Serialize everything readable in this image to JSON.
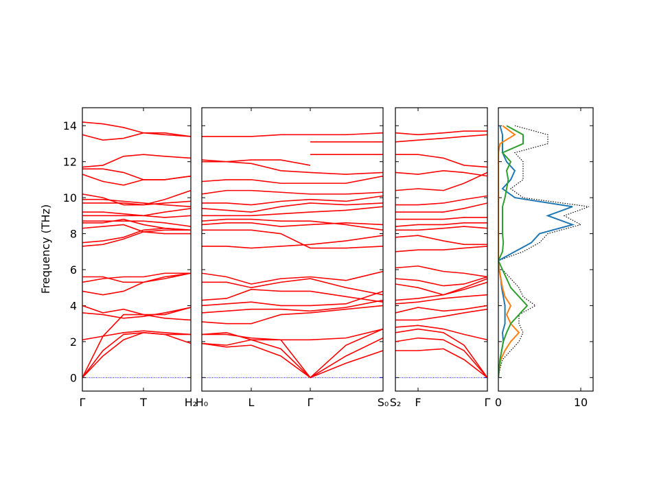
{
  "chart_data": [
    {
      "type": "band",
      "ylabel": "Frequency (THz)",
      "ylim": [
        -0.75,
        15
      ],
      "yticks": [
        0,
        2,
        4,
        6,
        8,
        10,
        12,
        14
      ],
      "ytick_labels": true,
      "xlim": [
        0,
        1.58
      ],
      "xticks": [
        {
          "value": 0,
          "label": "Γ"
        },
        {
          "value": 0.89,
          "label": "T"
        },
        {
          "value": 1.58,
          "label": "H₂"
        }
      ],
      "color": "#ff0000",
      "zero_line": true,
      "zero_line_color": "#0000ff",
      "x": [
        0,
        0.3,
        0.6,
        0.89,
        1.2,
        1.58
      ],
      "series": [
        {
          "values": [
            0,
            1.2,
            2.1,
            2.5,
            2.4,
            1.9
          ]
        },
        {
          "values": [
            0,
            1.5,
            2.4,
            2.5,
            2.4,
            2.4
          ]
        },
        {
          "values": [
            0,
            2.3,
            3.5,
            3.5,
            3.3,
            3.2
          ]
        },
        {
          "values": [
            2.1,
            2.3,
            2.5,
            2.6,
            2.5,
            2.4
          ]
        },
        {
          "values": [
            3.6,
            3.5,
            3.3,
            3.4,
            3.6,
            3.9
          ]
        },
        {
          "values": [
            4.0,
            3.6,
            3.8,
            3.5,
            3.5,
            3.9
          ]
        },
        {
          "values": [
            4.8,
            4.6,
            4.8,
            5.3,
            5.6,
            5.8
          ]
        },
        {
          "values": [
            5.3,
            5.5,
            5.6,
            5.6,
            5.8,
            5.8
          ]
        },
        {
          "values": [
            5.6,
            5.6,
            5.3,
            5.3,
            5.5,
            5.8
          ]
        },
        {
          "values": [
            7.3,
            7.4,
            7.7,
            8.1,
            8.2,
            8.2
          ]
        },
        {
          "values": [
            7.5,
            7.6,
            7.8,
            8.2,
            8.3,
            8.2
          ]
        },
        {
          "values": [
            8.3,
            8.4,
            8.5,
            8.1,
            8.0,
            8.0
          ]
        },
        {
          "values": [
            8.6,
            8.6,
            8.8,
            8.5,
            8.3,
            8.2
          ]
        },
        {
          "values": [
            8.7,
            8.7,
            8.7,
            8.7,
            8.6,
            8.4
          ]
        },
        {
          "values": [
            9.0,
            9.0,
            9.0,
            9.0,
            8.9,
            9.0
          ]
        },
        {
          "values": [
            9.2,
            9.2,
            9.1,
            9.0,
            9.2,
            9.4
          ]
        },
        {
          "values": [
            9.7,
            9.7,
            9.7,
            9.6,
            9.7,
            9.8
          ]
        },
        {
          "values": [
            9.9,
            9.9,
            9.8,
            9.7,
            9.6,
            9.5
          ]
        },
        {
          "values": [
            10.2,
            10.0,
            9.6,
            9.6,
            9.9,
            10.4
          ]
        },
        {
          "values": [
            11.3,
            10.9,
            10.7,
            11.0,
            11.0,
            11.2
          ]
        },
        {
          "values": [
            11.6,
            11.6,
            11.4,
            11.0,
            11.0,
            11.2
          ]
        },
        {
          "values": [
            11.7,
            11.8,
            12.3,
            12.4,
            12.3,
            12.2
          ]
        },
        {
          "values": [
            13.5,
            13.2,
            13.3,
            13.6,
            13.5,
            13.4
          ]
        },
        {
          "values": [
            14.2,
            14.1,
            13.9,
            13.6,
            13.6,
            13.4
          ]
        }
      ]
    },
    {
      "type": "band",
      "ylim": [
        -0.75,
        15
      ],
      "yticks": [
        0,
        2,
        4,
        6,
        8,
        10,
        12,
        14
      ],
      "ytick_labels": false,
      "xlim": [
        0,
        2.64
      ],
      "xticks": [
        {
          "value": 0,
          "label": "H₀"
        },
        {
          "value": 0.72,
          "label": "L"
        },
        {
          "value": 1.58,
          "label": "Γ"
        },
        {
          "value": 2.64,
          "label": "S₀"
        }
      ],
      "color": "#ff0000",
      "zero_line": true,
      "zero_line_color": "#0000ff",
      "x": [
        0,
        0.36,
        0.72,
        1.15,
        1.58,
        2.1,
        2.64
      ],
      "series": [
        {
          "values": [
            1.9,
            1.7,
            1.8,
            1.2,
            0,
            0.8,
            1.5
          ]
        },
        {
          "values": [
            1.9,
            1.8,
            2.1,
            1.6,
            0,
            1.2,
            2.2
          ]
        },
        {
          "values": [
            2.4,
            2.4,
            2.2,
            2.1,
            0,
            1.8,
            2.7
          ]
        },
        {
          "values": [
            2.4,
            2.5,
            2.1,
            2.1,
            2.1,
            2.2,
            2.7
          ]
        },
        {
          "values": [
            3.1,
            3.0,
            3.0,
            3.5,
            3.6,
            3.8,
            4.0
          ]
        },
        {
          "values": [
            3.6,
            3.7,
            3.8,
            3.8,
            3.7,
            3.9,
            4.3
          ]
        },
        {
          "values": [
            4.0,
            4.1,
            4.2,
            4.0,
            4.0,
            4.1,
            4.8
          ]
        },
        {
          "values": [
            4.3,
            4.4,
            4.9,
            4.8,
            4.8,
            4.5,
            4.2
          ]
        },
        {
          "values": [
            5.3,
            5.3,
            5.0,
            5.3,
            5.5,
            5.0,
            4.6
          ]
        },
        {
          "values": [
            5.8,
            5.6,
            5.2,
            5.5,
            5.6,
            5.4,
            5.9
          ]
        },
        {
          "values": [
            7.3,
            7.3,
            7.2,
            7.3,
            7.4,
            7.6,
            7.9
          ]
        },
        {
          "values": [
            8.2,
            8.2,
            8.2,
            8.0,
            7.2,
            7.2,
            7.3
          ]
        },
        {
          "values": [
            8.5,
            8.6,
            8.6,
            8.4,
            8.5,
            8.6,
            8.5
          ]
        },
        {
          "values": [
            8.7,
            8.8,
            8.8,
            8.7,
            8.7,
            8.5,
            8.2
          ]
        },
        {
          "values": [
            9.0,
            9.0,
            9.0,
            9.1,
            9.2,
            9.3,
            9.5
          ]
        },
        {
          "values": [
            9.4,
            9.3,
            9.2,
            9.5,
            9.7,
            9.6,
            9.7
          ]
        },
        {
          "values": [
            9.7,
            9.7,
            9.6,
            9.8,
            9.9,
            9.8,
            10.1
          ]
        },
        {
          "values": [
            10.2,
            10.4,
            10.4,
            10.3,
            10.2,
            10.2,
            10.3
          ]
        },
        {
          "values": [
            10.9,
            11.0,
            11.0,
            10.8,
            10.8,
            10.8,
            11.2
          ]
        },
        {
          "values": [
            12.0,
            12.0,
            11.9,
            11.5,
            11.4,
            11.3,
            11.4
          ]
        },
        {
          "values": [
            12.1,
            12.0,
            12.1,
            12.1,
            11.8,
            null,
            null
          ]
        },
        {
          "values": [
            13.4,
            13.4,
            13.4,
            13.5,
            13.5,
            13.5,
            13.6
          ]
        },
        {
          "values": [
            null,
            null,
            null,
            null,
            13.1,
            13.1,
            13.1
          ]
        },
        {
          "values": [
            null,
            null,
            null,
            null,
            12.4,
            12.4,
            12.4
          ]
        }
      ]
    },
    {
      "type": "band",
      "ylim": [
        -0.75,
        15
      ],
      "yticks": [
        0,
        2,
        4,
        6,
        8,
        10,
        12,
        14
      ],
      "ytick_labels": false,
      "xlim": [
        0,
        1.34
      ],
      "xticks": [
        {
          "value": 0,
          "label": "S₂"
        },
        {
          "value": 0.33,
          "label": "F"
        },
        {
          "value": 1.34,
          "label": "Γ"
        }
      ],
      "color": "#ff0000",
      "zero_line": true,
      "zero_line_color": "#0000ff",
      "x": [
        0,
        0.33,
        0.7,
        1.0,
        1.34
      ],
      "series": [
        {
          "values": [
            1.5,
            1.5,
            1.6,
            1.0,
            0
          ]
        },
        {
          "values": [
            2.0,
            2.2,
            2.1,
            1.5,
            0
          ]
        },
        {
          "values": [
            2.5,
            2.7,
            2.5,
            1.8,
            0
          ]
        },
        {
          "values": [
            2.8,
            2.9,
            2.7,
            2.4,
            2.1
          ]
        },
        {
          "values": [
            3.2,
            3.2,
            3.4,
            3.6,
            3.8
          ]
        },
        {
          "values": [
            3.6,
            3.9,
            3.7,
            3.8,
            4.0
          ]
        },
        {
          "values": [
            4.1,
            4.2,
            4.4,
            4.5,
            4.6
          ]
        },
        {
          "values": [
            4.3,
            4.4,
            4.6,
            4.9,
            5.3
          ]
        },
        {
          "values": [
            5.2,
            5.0,
            4.6,
            5.0,
            5.5
          ]
        },
        {
          "values": [
            5.5,
            5.4,
            5.1,
            5.2,
            5.6
          ]
        },
        {
          "values": [
            6.1,
            6.2,
            5.9,
            5.8,
            5.6
          ]
        },
        {
          "values": [
            7.0,
            7.1,
            7.1,
            7.2,
            7.3
          ]
        },
        {
          "values": [
            7.8,
            7.9,
            7.6,
            7.4,
            7.4
          ]
        },
        {
          "values": [
            8.2,
            8.2,
            8.3,
            8.4,
            8.3
          ]
        },
        {
          "values": [
            8.4,
            8.5,
            8.5,
            8.6,
            8.6
          ]
        },
        {
          "values": [
            8.8,
            8.8,
            8.8,
            8.9,
            8.9
          ]
        },
        {
          "values": [
            9.2,
            9.2,
            9.2,
            9.4,
            9.7
          ]
        },
        {
          "values": [
            9.6,
            9.6,
            9.7,
            9.9,
            10.1
          ]
        },
        {
          "values": [
            10.4,
            10.5,
            10.4,
            10.8,
            11.4
          ]
        },
        {
          "values": [
            11.4,
            11.3,
            11.5,
            11.4,
            11.2
          ]
        },
        {
          "values": [
            12.4,
            12.4,
            12.2,
            11.8,
            11.7
          ]
        },
        {
          "values": [
            13.1,
            13.2,
            13.3,
            13.4,
            13.5
          ]
        },
        {
          "values": [
            13.6,
            13.5,
            13.6,
            13.7,
            13.7
          ]
        }
      ]
    },
    {
      "type": "dos",
      "ylim": [
        -0.75,
        15
      ],
      "yticks": [
        0,
        2,
        4,
        6,
        8,
        10,
        12,
        14
      ],
      "ytick_labels": false,
      "xlim": [
        0,
        11.5
      ],
      "xticks": [
        0,
        10
      ],
      "y": [
        0,
        0.5,
        1,
        1.5,
        2,
        2.5,
        3,
        3.5,
        4,
        4.5,
        5,
        5.5,
        6,
        6.5,
        7,
        7.5,
        8,
        8.5,
        9,
        9.5,
        10,
        10.5,
        11,
        11.5,
        12,
        12.5,
        13,
        13.5,
        14
      ],
      "series": [
        {
          "color": "#000000",
          "dotted": true,
          "values": [
            0,
            0.2,
            0.5,
            1.5,
            2.5,
            3,
            2.5,
            2.5,
            4.5,
            3,
            2.5,
            1.5,
            0.5,
            0,
            3,
            5,
            6,
            10,
            8,
            11,
            3,
            1.5,
            3,
            3,
            3,
            2,
            6,
            6,
            2
          ]
        },
        {
          "color": "#1f77b4",
          "dotted": false,
          "values": [
            0,
            0.1,
            0.2,
            0.4,
            0.6,
            0.5,
            0.8,
            0.8,
            0.8,
            0.6,
            0.4,
            0.3,
            0.1,
            0,
            2,
            4,
            5,
            9,
            6,
            9,
            2,
            0.5,
            1.5,
            2,
            1,
            0.5,
            0.5,
            0.5,
            0.2
          ]
        },
        {
          "color": "#ff7f0e",
          "dotted": false,
          "values": [
            0,
            0.1,
            0.3,
            0.8,
            1.5,
            2.5,
            1.5,
            1,
            1.5,
            0.8,
            0.5,
            0.3,
            0.1,
            0,
            0,
            0,
            0,
            0,
            0,
            0,
            0,
            0,
            0,
            0,
            0,
            0,
            0.2,
            2,
            0.5
          ]
        },
        {
          "color": "#2ca02c",
          "dotted": false,
          "values": [
            0,
            0.1,
            0.2,
            0.4,
            0.6,
            1,
            1.5,
            2.5,
            3.5,
            2.5,
            1.5,
            1,
            0.5,
            0,
            0.5,
            0.6,
            0.5,
            0.5,
            0.5,
            0.5,
            0.8,
            1,
            1.2,
            1,
            1.5,
            0.5,
            3,
            3,
            1
          ]
        }
      ]
    }
  ]
}
